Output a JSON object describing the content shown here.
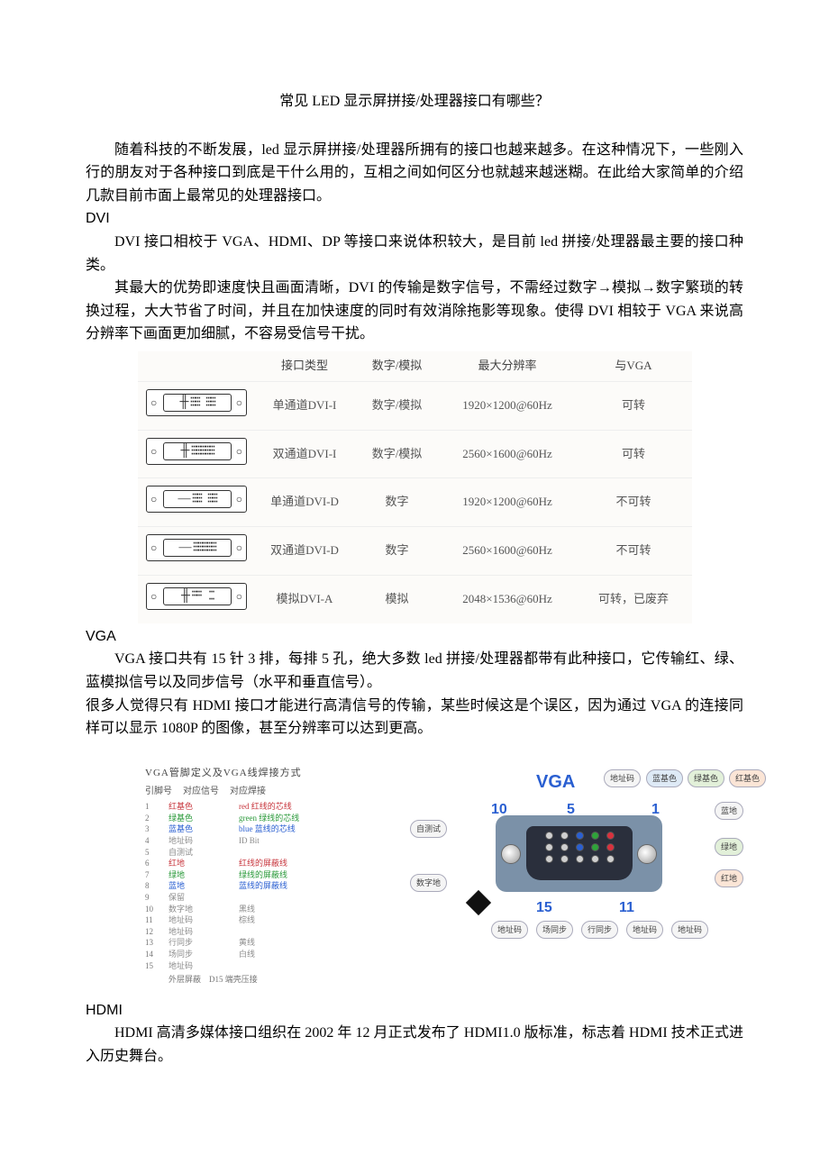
{
  "title": "常见 LED 显示屏拼接/处理器接口有哪些？",
  "intro": "随着科技的不断发展，led 显示屏拼接/处理器所拥有的接口也越来越多。在这种情况下，一些刚入行的朋友对于各种接口到底是干什么用的，互相之间如何区分也就越来越迷糊。在此给大家简单的介绍几款目前市面上最常见的处理器接口。",
  "dvi": {
    "head": "DVI",
    "p1": "DVI 接口相校于 VGA、HDMI、DP 等接口来说体积较大，是目前 led 拼接/处理器最主要的接口种类。",
    "p2": "其最大的优势即速度快且画面清晰，DVI 的传输是数字信号，不需经过数字→模拟→数字繁琐的转换过程，大大节省了时间，并且在加快速度的同时有效消除拖影等现象。使得 DVI 相较于 VGA 来说高分辨率下画面更加细腻，不容易受信号干扰。",
    "table": {
      "headers": [
        "接口类型",
        "数字/模拟",
        "最大分辨率",
        "与VGA"
      ],
      "rows": [
        {
          "type": "单通道DVI-I",
          "sig": "数字/模拟",
          "res": "1920×1200@60Hz",
          "vga": "可转"
        },
        {
          "type": "双通道DVI-I",
          "sig": "数字/模拟",
          "res": "2560×1600@60Hz",
          "vga": "可转"
        },
        {
          "type": "单通道DVI-D",
          "sig": "数字",
          "res": "1920×1200@60Hz",
          "vga": "不可转"
        },
        {
          "type": "双通道DVI-D",
          "sig": "数字",
          "res": "2560×1600@60Hz",
          "vga": "不可转"
        },
        {
          "type": "模拟DVI-A",
          "sig": "模拟",
          "res": "2048×1536@60Hz",
          "vga": "可转，已废弃"
        }
      ]
    }
  },
  "vga": {
    "head": "VGA",
    "p1": "VGA 接口共有 15 针 3 排，每排 5 孔，绝大多数 led 拼接/处理器都带有此种接口，它传输红、绿、蓝模拟信号以及同步信号（水平和垂直信号）。",
    "p2": "很多人觉得只有 HDMI 接口才能进行高清信号的传输，某些时候这是个误区，因为通过 VGA 的连接同样可以显示 1080P 的图像，甚至分辨率可以达到更高。",
    "pin_title": "VGA管脚定义及VGA线焊接方式",
    "pin_head": {
      "a": "引脚号",
      "b": "对应信号",
      "c": "对应焊接"
    },
    "pins": [
      {
        "n": "1",
        "sig": "红基色",
        "sigc": "c-red",
        "weld": "red 红线的芯线",
        "weldc": "c-red"
      },
      {
        "n": "2",
        "sig": "绿基色",
        "sigc": "c-green",
        "weld": "green 绿线的芯线",
        "weldc": "c-green"
      },
      {
        "n": "3",
        "sig": "蓝基色",
        "sigc": "c-blue",
        "weld": "blue 蓝线的芯线",
        "weldc": "c-blue"
      },
      {
        "n": "4",
        "sig": "地址码",
        "sigc": "c-gray",
        "weld": "ID Bit",
        "weldc": "c-gray"
      },
      {
        "n": "5",
        "sig": "自测试",
        "sigc": "c-gray",
        "weld": "",
        "weldc": ""
      },
      {
        "n": "6",
        "sig": "红地",
        "sigc": "c-red",
        "weld": "红线的屏蔽线",
        "weldc": "c-red"
      },
      {
        "n": "7",
        "sig": "绿地",
        "sigc": "c-green",
        "weld": "绿线的屏蔽线",
        "weldc": "c-green"
      },
      {
        "n": "8",
        "sig": "蓝地",
        "sigc": "c-blue",
        "weld": "蓝线的屏蔽线",
        "weldc": "c-blue"
      },
      {
        "n": "9",
        "sig": "保留",
        "sigc": "c-gray",
        "weld": "",
        "weldc": ""
      },
      {
        "n": "10",
        "sig": "数字地",
        "sigc": "c-gray",
        "weld": "黑线",
        "weldc": "c-gray"
      },
      {
        "n": "11",
        "sig": "地址码",
        "sigc": "c-gray",
        "weld": "棕线",
        "weldc": "c-gray"
      },
      {
        "n": "12",
        "sig": "地址码",
        "sigc": "c-gray",
        "weld": "",
        "weldc": ""
      },
      {
        "n": "13",
        "sig": "行同步",
        "sigc": "c-gray",
        "weld": "黄线",
        "weldc": "c-gray"
      },
      {
        "n": "14",
        "sig": "场同步",
        "sigc": "c-gray",
        "weld": "白线",
        "weldc": "c-gray"
      },
      {
        "n": "15",
        "sig": "地址码",
        "sigc": "c-gray",
        "weld": "",
        "weldc": ""
      }
    ],
    "pin_foot": "外层屏蔽　D15 端壳压接",
    "diagram_label": "VGA",
    "tags": {
      "t1": "地址码",
      "t2": "蓝基色",
      "t3": "绿基色",
      "t4": "红基色",
      "t5": "自测试",
      "t6": "蓝地",
      "t7": "绿地",
      "t8": "红地",
      "t9": "数字地",
      "b1": "地址码",
      "b2": "场同步",
      "b3": "行同步",
      "b4": "地址码",
      "b5": "地址码"
    },
    "nums": {
      "n10": "10",
      "n5": "5",
      "n1": "1",
      "n15": "15",
      "n11": "11"
    }
  },
  "hdmi": {
    "head": "HDMI",
    "p1": "HDMI 高清多媒体接口组织在 2002 年 12 月正式发布了 HDMI1.0 版标准，标志着 HDMI 技术正式进入历史舞台。"
  }
}
